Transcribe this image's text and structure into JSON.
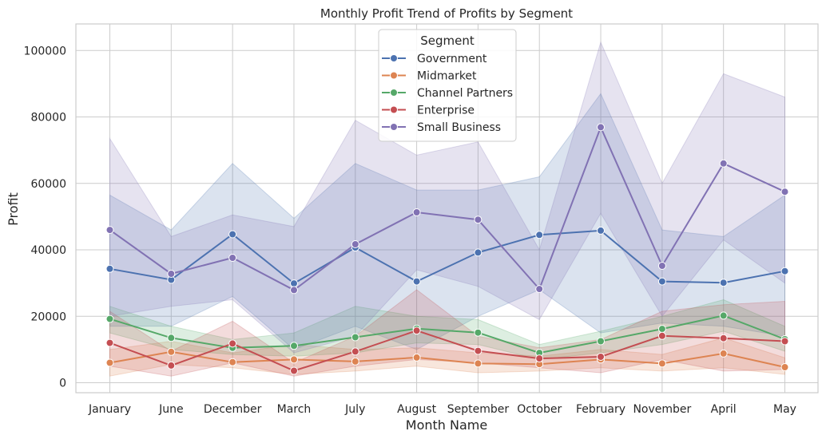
{
  "chart_data": {
    "type": "line",
    "title": "Monthly Profit Trend of Profits by Segment",
    "xlabel": "Month Name",
    "ylabel": "Profit",
    "categories": [
      "January",
      "June",
      "December",
      "March",
      "July",
      "August",
      "September",
      "October",
      "February",
      "November",
      "April",
      "May"
    ],
    "ylim": [
      -3000,
      108000
    ],
    "yticks": [
      0,
      20000,
      40000,
      60000,
      80000,
      100000
    ],
    "ytick_labels": [
      "0",
      "20000",
      "40000",
      "60000",
      "80000",
      "100000"
    ],
    "grid": true,
    "legend": {
      "title": "Segment",
      "placement": "top-center"
    },
    "series": [
      {
        "name": "Government",
        "color": "#4c72b0",
        "values": [
          34300,
          31000,
          44700,
          29900,
          40700,
          30500,
          39200,
          44500,
          45800,
          30500,
          30100,
          33600
        ],
        "ci_low": [
          17000,
          17000,
          26000,
          10000,
          17000,
          10000,
          20000,
          28000,
          15000,
          18000,
          17000,
          14000
        ],
        "ci_high": [
          56500,
          46000,
          66000,
          49500,
          66000,
          58000,
          58000,
          62000,
          87000,
          46000,
          44000,
          56500
        ]
      },
      {
        "name": "Midmarket",
        "color": "#dd8452",
        "values": [
          6000,
          9300,
          6200,
          7000,
          6400,
          7600,
          5800,
          5600,
          7000,
          5800,
          8800,
          4700
        ],
        "ci_low": [
          2000,
          5500,
          4500,
          2500,
          3500,
          5000,
          3000,
          3500,
          4500,
          3500,
          4500,
          2500
        ],
        "ci_high": [
          10000,
          12500,
          9000,
          11500,
          10000,
          10500,
          9000,
          8000,
          10000,
          8500,
          13500,
          7500
        ]
      },
      {
        "name": "Channel Partners",
        "color": "#55a868",
        "values": [
          19200,
          13500,
          10500,
          11100,
          13700,
          16300,
          15100,
          9000,
          12500,
          16200,
          20200,
          13100
        ],
        "ci_low": [
          15000,
          10000,
          8500,
          8000,
          9000,
          12000,
          11500,
          7000,
          9000,
          11500,
          15500,
          9500
        ],
        "ci_high": [
          23000,
          17000,
          13000,
          15000,
          23000,
          20000,
          19000,
          11500,
          15500,
          20000,
          25000,
          17000
        ]
      },
      {
        "name": "Enterprise",
        "color": "#c44e52",
        "values": [
          12000,
          5200,
          11800,
          3600,
          9400,
          15700,
          9600,
          7300,
          7800,
          14100,
          13400,
          12500
        ],
        "ci_low": [
          5000,
          2000,
          6000,
          2000,
          5000,
          7000,
          6000,
          4500,
          3000,
          7000,
          3500,
          4000
        ],
        "ci_high": [
          21500,
          9500,
          18500,
          6000,
          14000,
          28000,
          14000,
          10500,
          13000,
          21500,
          23500,
          24500
        ]
      },
      {
        "name": "Small Business",
        "color": "#8172b3",
        "values": [
          46000,
          32800,
          37600,
          27900,
          41700,
          51300,
          49100,
          28200,
          76900,
          35200,
          66000,
          57500
        ],
        "ci_low": [
          20000,
          23000,
          25000,
          9000,
          14000,
          34000,
          29000,
          19000,
          51000,
          20000,
          43000,
          30000
        ],
        "ci_high": [
          73500,
          44000,
          50500,
          47000,
          79000,
          68500,
          72500,
          40000,
          102500,
          60000,
          93000,
          86000
        ]
      }
    ]
  }
}
